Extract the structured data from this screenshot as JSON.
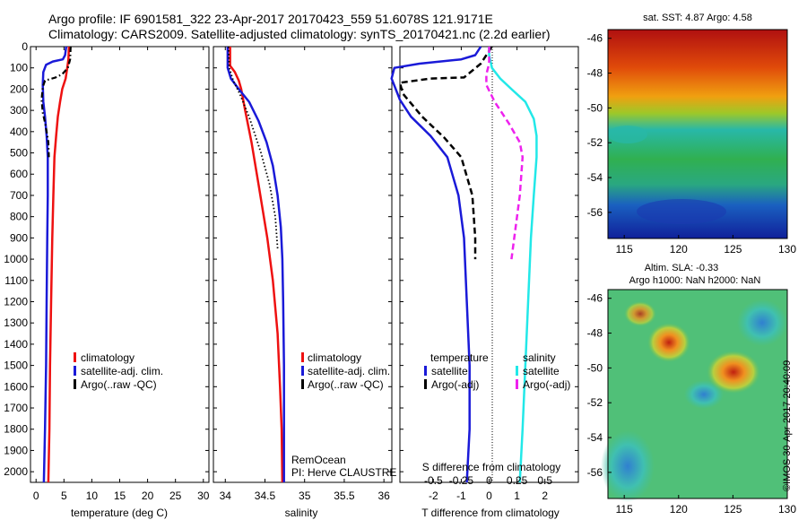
{
  "titles": {
    "line1": "Argo profile: IF 6901581_322 23-Apr-2017 20170423_559 51.6078S 121.9171E",
    "line2": "Climatology: CARS2009. Satellite-adjusted climatology: synTS_20170421.nc (2.2d earlier)"
  },
  "stamp": "©IMOS 30-Apr-2017 20:40:09",
  "colors": {
    "climatology": "#ee1111",
    "satellite": "#1a1ad8",
    "argo": "#000000",
    "sat_salinity": "#22e8e8",
    "argo_salinity_adj": "#ee22ee"
  },
  "chart_data": [
    {
      "type": "line",
      "xlabel": "temperature (deg C)",
      "xlim": [
        -1,
        31
      ],
      "xticks": [
        "0",
        "5",
        "10",
        "15",
        "20",
        "25",
        "30"
      ],
      "ylim": [
        2050,
        0
      ],
      "yticks": [
        "0",
        "100",
        "200",
        "300",
        "400",
        "500",
        "600",
        "700",
        "800",
        "900",
        "1000",
        "1100",
        "1200",
        "1300",
        "1400",
        "1500",
        "1600",
        "1700",
        "1800",
        "1900",
        "2000"
      ],
      "legend": [
        "climatology",
        "satellite-adj. clim.",
        "Argo(..raw -QC)"
      ],
      "series": [
        {
          "name": "climatology",
          "color": "#ee1111",
          "style": "solid",
          "width": 2.5,
          "points": [
            [
              5.9,
              0
            ],
            [
              5.8,
              60
            ],
            [
              5.6,
              100
            ],
            [
              5.3,
              150
            ],
            [
              4.7,
              200
            ],
            [
              4.3,
              260
            ],
            [
              3.9,
              330
            ],
            [
              3.6,
              420
            ],
            [
              3.3,
              520
            ],
            [
              3.1,
              700
            ],
            [
              2.9,
              900
            ],
            [
              2.7,
              1200
            ],
            [
              2.5,
              1500
            ],
            [
              2.4,
              1800
            ],
            [
              2.2,
              2050
            ]
          ]
        },
        {
          "name": "satellite-adj. clim.",
          "color": "#1a1ad8",
          "style": "solid",
          "width": 2.5,
          "points": [
            [
              5.4,
              0
            ],
            [
              5.2,
              40
            ],
            [
              4.8,
              60
            ],
            [
              3.0,
              70
            ],
            [
              1.8,
              85
            ],
            [
              1.3,
              120
            ],
            [
              1.2,
              180
            ],
            [
              1.3,
              260
            ],
            [
              1.6,
              330
            ],
            [
              1.9,
              420
            ],
            [
              2.1,
              520
            ],
            [
              2.1,
              700
            ],
            [
              2.0,
              900
            ],
            [
              1.9,
              1200
            ],
            [
              1.8,
              1500
            ],
            [
              1.6,
              1800
            ],
            [
              1.4,
              2050
            ]
          ]
        },
        {
          "name": "Argo(..raw -QC)",
          "color": "#000000",
          "style": "dashdot",
          "width": 2.2,
          "points": [
            [
              6.2,
              0
            ],
            [
              6.1,
              60
            ],
            [
              5.7,
              100
            ],
            [
              4.7,
              130
            ],
            [
              3.5,
              145
            ],
            [
              1.6,
              160
            ],
            [
              1.2,
              190
            ],
            [
              1.0,
              250
            ],
            [
              1.2,
              310
            ],
            [
              1.7,
              370
            ],
            [
              2.2,
              450
            ],
            [
              2.3,
              520
            ]
          ]
        }
      ]
    },
    {
      "type": "line",
      "xlabel": "salinity",
      "xlim": [
        33.85,
        36.1
      ],
      "xticks": [
        "34",
        "34.5",
        "35",
        "35.5",
        "36"
      ],
      "ylim": [
        2050,
        0
      ],
      "legend": [
        "climatology",
        "satellite-adj. clim.",
        "Argo(..raw -QC)"
      ],
      "annotation": [
        "RemOcean",
        "PI: Herve CLAUSTRE"
      ],
      "series": [
        {
          "name": "climatology",
          "color": "#ee1111",
          "style": "solid",
          "width": 2.5,
          "points": [
            [
              34.06,
              0
            ],
            [
              34.06,
              90
            ],
            [
              34.12,
              120
            ],
            [
              34.17,
              160
            ],
            [
              34.2,
              200
            ],
            [
              34.25,
              300
            ],
            [
              34.33,
              450
            ],
            [
              34.42,
              650
            ],
            [
              34.53,
              900
            ],
            [
              34.6,
              1100
            ],
            [
              34.66,
              1350
            ],
            [
              34.69,
              1600
            ],
            [
              34.71,
              1800
            ],
            [
              34.72,
              2050
            ]
          ]
        },
        {
          "name": "satellite-adj. clim.",
          "color": "#1a1ad8",
          "style": "solid",
          "width": 2.5,
          "points": [
            [
              34.03,
              0
            ],
            [
              34.03,
              100
            ],
            [
              34.07,
              150
            ],
            [
              34.17,
              200
            ],
            [
              34.3,
              260
            ],
            [
              34.42,
              350
            ],
            [
              34.52,
              450
            ],
            [
              34.6,
              560
            ],
            [
              34.66,
              700
            ],
            [
              34.7,
              850
            ],
            [
              34.72,
              1000
            ],
            [
              34.73,
              1200
            ],
            [
              34.74,
              1500
            ],
            [
              34.74,
              1800
            ],
            [
              34.74,
              2050
            ]
          ]
        },
        {
          "name": "Argo(..raw -QC)",
          "color": "#000000",
          "style": "dotted",
          "width": 1.8,
          "points": [
            [
              34.04,
              0
            ],
            [
              34.05,
              100
            ],
            [
              34.1,
              160
            ],
            [
              34.18,
              220
            ],
            [
              34.3,
              330
            ],
            [
              34.45,
              500
            ],
            [
              34.56,
              650
            ],
            [
              34.63,
              800
            ],
            [
              34.66,
              950
            ]
          ]
        }
      ]
    },
    {
      "type": "line",
      "xlabel": "T difference from climatology",
      "xlabel_top": "S difference from climatology",
      "xlim": [
        -3.2,
        3.2
      ],
      "xticks": [
        "-2",
        "-1",
        "0",
        "1",
        "2"
      ],
      "xticks_top": [
        "-0.5",
        "-0.25",
        "0",
        "0.25",
        "0.5"
      ],
      "ylim": [
        2050,
        0
      ],
      "legend_titles": [
        "temperature",
        "salinity"
      ],
      "legend": [
        "satellite",
        "Argo(-adj)",
        "satellite",
        "Argo(-adj)"
      ],
      "series": [
        {
          "name": "satellite",
          "color": "#1a1ad8",
          "style": "solid",
          "width": 2.5,
          "points": [
            [
              -0.3,
              0
            ],
            [
              -0.5,
              40
            ],
            [
              -1.0,
              60
            ],
            [
              -2.5,
              80
            ],
            [
              -3.4,
              100
            ],
            [
              -3.5,
              150
            ],
            [
              -3.2,
              250
            ],
            [
              -2.8,
              330
            ],
            [
              -2.1,
              420
            ],
            [
              -1.5,
              520
            ],
            [
              -1.1,
              700
            ],
            [
              -0.9,
              900
            ],
            [
              -0.8,
              1200
            ],
            [
              -0.7,
              1500
            ],
            [
              -0.7,
              1800
            ],
            [
              -0.8,
              2050
            ]
          ]
        },
        {
          "name": "Argo(-adj)",
          "color": "#000000",
          "style": "dashed",
          "width": 2.5,
          "points": [
            [
              0.1,
              0
            ],
            [
              -0.3,
              80
            ],
            [
              -0.9,
              145
            ],
            [
              -2.1,
              150
            ],
            [
              -3.2,
              170
            ],
            [
              -3.1,
              220
            ],
            [
              -2.4,
              330
            ],
            [
              -1.6,
              430
            ],
            [
              -1.0,
              520
            ],
            [
              -0.6,
              700
            ],
            [
              -0.5,
              900
            ],
            [
              -0.5,
              1000
            ]
          ]
        },
        {
          "name": "satellite",
          "color": "#22e8e8",
          "style": "solid",
          "width": 2.5,
          "points": [
            [
              0.0,
              0
            ],
            [
              0.0,
              40
            ],
            [
              0.1,
              100
            ],
            [
              0.4,
              150
            ],
            [
              0.8,
              200
            ],
            [
              1.3,
              260
            ],
            [
              1.6,
              340
            ],
            [
              1.7,
              420
            ],
            [
              1.7,
              520
            ],
            [
              1.6,
              700
            ],
            [
              1.5,
              900
            ],
            [
              1.4,
              1200
            ],
            [
              1.3,
              1500
            ],
            [
              1.2,
              1800
            ],
            [
              1.1,
              2050
            ]
          ]
        },
        {
          "name": "Argo(-adj)",
          "color": "#ee22ee",
          "style": "dashed",
          "width": 2.5,
          "points": [
            [
              0.0,
              0
            ],
            [
              0.0,
              80
            ],
            [
              -0.1,
              130
            ],
            [
              -0.1,
              180
            ],
            [
              0.2,
              260
            ],
            [
              0.7,
              360
            ],
            [
              1.1,
              450
            ],
            [
              1.2,
              520
            ],
            [
              1.1,
              700
            ],
            [
              0.9,
              900
            ],
            [
              0.8,
              1000
            ]
          ]
        }
      ]
    },
    {
      "type": "heatmap",
      "title": "sat. SST: 4.87 Argo: 4.58",
      "xticks": [
        "115",
        "120",
        "125",
        "130"
      ],
      "yticks": [
        "-46",
        "-48",
        "-50",
        "-52",
        "-54",
        "-56"
      ],
      "xlim": [
        113.5,
        130
      ],
      "ylim": [
        -57.5,
        -45.5
      ]
    },
    {
      "type": "heatmap",
      "title": [
        "Altim. SLA: -0.33",
        "Argo h1000: NaN h2000: NaN"
      ],
      "xticks": [
        "115",
        "120",
        "125",
        "130"
      ],
      "yticks": [
        "-46",
        "-48",
        "-50",
        "-52",
        "-54",
        "-56"
      ],
      "xlim": [
        113.5,
        130
      ],
      "ylim": [
        -57.5,
        -45.5
      ]
    }
  ]
}
